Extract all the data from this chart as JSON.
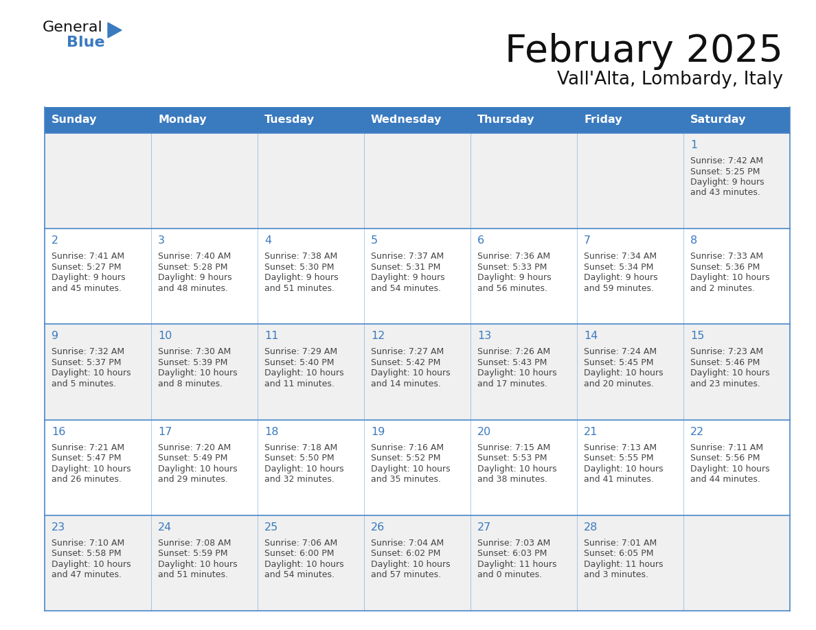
{
  "title": "February 2025",
  "subtitle": "Vall'Alta, Lombardy, Italy",
  "header_bg": "#3a7abf",
  "header_text_color": "#ffffff",
  "cell_border_color": "#4a86c8",
  "day_number_color": "#3a7abf",
  "info_text_color": "#444444",
  "bg_color": "#ffffff",
  "row_alt_bg": "#f0f0f0",
  "days_of_week": [
    "Sunday",
    "Monday",
    "Tuesday",
    "Wednesday",
    "Thursday",
    "Friday",
    "Saturday"
  ],
  "logo_general_color": "#1a1a1a",
  "logo_blue_color": "#3a7abf",
  "calendar_data": [
    [
      null,
      null,
      null,
      null,
      null,
      null,
      {
        "day": "1",
        "sunrise": "7:42 AM",
        "sunset": "5:25 PM",
        "daylight": "9 hours",
        "daylight2": "and 43 minutes."
      }
    ],
    [
      {
        "day": "2",
        "sunrise": "7:41 AM",
        "sunset": "5:27 PM",
        "daylight": "9 hours",
        "daylight2": "and 45 minutes."
      },
      {
        "day": "3",
        "sunrise": "7:40 AM",
        "sunset": "5:28 PM",
        "daylight": "9 hours",
        "daylight2": "and 48 minutes."
      },
      {
        "day": "4",
        "sunrise": "7:38 AM",
        "sunset": "5:30 PM",
        "daylight": "9 hours",
        "daylight2": "and 51 minutes."
      },
      {
        "day": "5",
        "sunrise": "7:37 AM",
        "sunset": "5:31 PM",
        "daylight": "9 hours",
        "daylight2": "and 54 minutes."
      },
      {
        "day": "6",
        "sunrise": "7:36 AM",
        "sunset": "5:33 PM",
        "daylight": "9 hours",
        "daylight2": "and 56 minutes."
      },
      {
        "day": "7",
        "sunrise": "7:34 AM",
        "sunset": "5:34 PM",
        "daylight": "9 hours",
        "daylight2": "and 59 minutes."
      },
      {
        "day": "8",
        "sunrise": "7:33 AM",
        "sunset": "5:36 PM",
        "daylight": "10 hours",
        "daylight2": "and 2 minutes."
      }
    ],
    [
      {
        "day": "9",
        "sunrise": "7:32 AM",
        "sunset": "5:37 PM",
        "daylight": "10 hours",
        "daylight2": "and 5 minutes."
      },
      {
        "day": "10",
        "sunrise": "7:30 AM",
        "sunset": "5:39 PM",
        "daylight": "10 hours",
        "daylight2": "and 8 minutes."
      },
      {
        "day": "11",
        "sunrise": "7:29 AM",
        "sunset": "5:40 PM",
        "daylight": "10 hours",
        "daylight2": "and 11 minutes."
      },
      {
        "day": "12",
        "sunrise": "7:27 AM",
        "sunset": "5:42 PM",
        "daylight": "10 hours",
        "daylight2": "and 14 minutes."
      },
      {
        "day": "13",
        "sunrise": "7:26 AM",
        "sunset": "5:43 PM",
        "daylight": "10 hours",
        "daylight2": "and 17 minutes."
      },
      {
        "day": "14",
        "sunrise": "7:24 AM",
        "sunset": "5:45 PM",
        "daylight": "10 hours",
        "daylight2": "and 20 minutes."
      },
      {
        "day": "15",
        "sunrise": "7:23 AM",
        "sunset": "5:46 PM",
        "daylight": "10 hours",
        "daylight2": "and 23 minutes."
      }
    ],
    [
      {
        "day": "16",
        "sunrise": "7:21 AM",
        "sunset": "5:47 PM",
        "daylight": "10 hours",
        "daylight2": "and 26 minutes."
      },
      {
        "day": "17",
        "sunrise": "7:20 AM",
        "sunset": "5:49 PM",
        "daylight": "10 hours",
        "daylight2": "and 29 minutes."
      },
      {
        "day": "18",
        "sunrise": "7:18 AM",
        "sunset": "5:50 PM",
        "daylight": "10 hours",
        "daylight2": "and 32 minutes."
      },
      {
        "day": "19",
        "sunrise": "7:16 AM",
        "sunset": "5:52 PM",
        "daylight": "10 hours",
        "daylight2": "and 35 minutes."
      },
      {
        "day": "20",
        "sunrise": "7:15 AM",
        "sunset": "5:53 PM",
        "daylight": "10 hours",
        "daylight2": "and 38 minutes."
      },
      {
        "day": "21",
        "sunrise": "7:13 AM",
        "sunset": "5:55 PM",
        "daylight": "10 hours",
        "daylight2": "and 41 minutes."
      },
      {
        "day": "22",
        "sunrise": "7:11 AM",
        "sunset": "5:56 PM",
        "daylight": "10 hours",
        "daylight2": "and 44 minutes."
      }
    ],
    [
      {
        "day": "23",
        "sunrise": "7:10 AM",
        "sunset": "5:58 PM",
        "daylight": "10 hours",
        "daylight2": "and 47 minutes."
      },
      {
        "day": "24",
        "sunrise": "7:08 AM",
        "sunset": "5:59 PM",
        "daylight": "10 hours",
        "daylight2": "and 51 minutes."
      },
      {
        "day": "25",
        "sunrise": "7:06 AM",
        "sunset": "6:00 PM",
        "daylight": "10 hours",
        "daylight2": "and 54 minutes."
      },
      {
        "day": "26",
        "sunrise": "7:04 AM",
        "sunset": "6:02 PM",
        "daylight": "10 hours",
        "daylight2": "and 57 minutes."
      },
      {
        "day": "27",
        "sunrise": "7:03 AM",
        "sunset": "6:03 PM",
        "daylight": "11 hours",
        "daylight2": "and 0 minutes."
      },
      {
        "day": "28",
        "sunrise": "7:01 AM",
        "sunset": "6:05 PM",
        "daylight": "11 hours",
        "daylight2": "and 3 minutes."
      },
      null
    ]
  ]
}
